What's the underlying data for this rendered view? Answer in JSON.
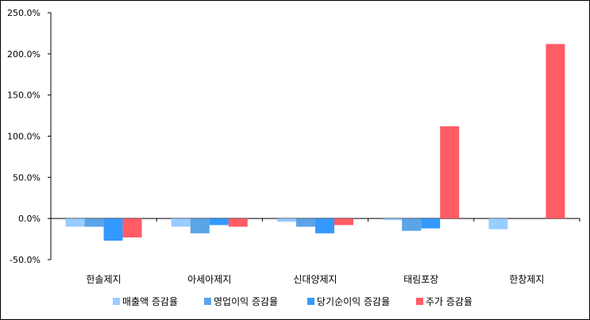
{
  "chart_data": {
    "type": "bar",
    "categories": [
      "한솔제지",
      "아세아제지",
      "신대양제지",
      "태림포장",
      "한창제지"
    ],
    "series": [
      {
        "name": "매출액 증감율",
        "color": "#99CCFF",
        "values": [
          -10.0,
          -10.0,
          -4.0,
          -2.0,
          -13.0
        ]
      },
      {
        "name": "영업이익 증감율",
        "color": "#5BA4E8",
        "values": [
          -10.0,
          -18.0,
          -10.0,
          -15.0,
          null
        ]
      },
      {
        "name": "당기순이익 증감율",
        "color": "#3399FF",
        "values": [
          -27.0,
          -8.0,
          -18.0,
          -12.0,
          null
        ]
      },
      {
        "name": "주가 증감율",
        "color": "#FF5C66",
        "values": [
          -23.0,
          -10.0,
          -8.0,
          112.0,
          212.0
        ]
      }
    ],
    "ylim": [
      -50,
      250
    ],
    "yticks": [
      -50,
      0,
      50,
      100,
      150,
      200,
      250
    ],
    "ytick_labels": [
      "-50.0%",
      "0.0%",
      "50.0%",
      "100.0%",
      "150.0%",
      "200.0%",
      "250.0%"
    ],
    "title": "",
    "xlabel": "",
    "ylabel": "",
    "grid": false,
    "legend_position": "bottom"
  }
}
